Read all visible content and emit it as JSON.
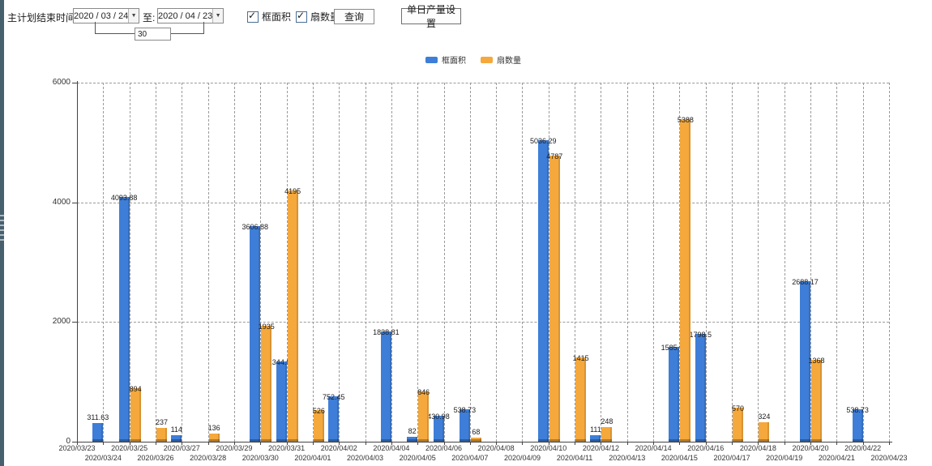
{
  "toolbar": {
    "title_label": "主计划结束时间:",
    "date_from": "2020 / 03 / 24",
    "to_label": "至:",
    "date_to": "2020 / 04 / 23",
    "interval_value": "30",
    "checkbox_area_label": "框面积",
    "checkbox_fan_label": "扇数量",
    "query_button": "查询",
    "daily_output_button": "单日产量设置"
  },
  "colors": {
    "frame_area": "#3e7ed8",
    "fan_count": "#f5a83c",
    "left_strip": "#46606e",
    "grid": "#9a9a9a"
  },
  "chart_data": {
    "type": "bar",
    "title": "",
    "xlabel": "",
    "ylabel": "",
    "ylim": [
      0,
      6000
    ],
    "yticks": [
      0,
      2000,
      4000,
      6000
    ],
    "grid": "dashed",
    "legend_position": "top-center",
    "categories": [
      "2020/03/23",
      "2020/03/24",
      "2020/03/25",
      "2020/03/26",
      "2020/03/27",
      "2020/03/28",
      "2020/03/29",
      "2020/03/30",
      "2020/03/31",
      "2020/04/01",
      "2020/04/02",
      "2020/04/03",
      "2020/04/04",
      "2020/04/05",
      "2020/04/06",
      "2020/04/07",
      "2020/04/08",
      "2020/04/09",
      "2020/04/10",
      "2020/04/11",
      "2020/04/12",
      "2020/04/13",
      "2020/04/14",
      "2020/04/15",
      "2020/04/16",
      "2020/04/17",
      "2020/04/18",
      "2020/04/19",
      "2020/04/20",
      "2020/04/21",
      "2020/04/22",
      "2020/04/23"
    ],
    "series": [
      {
        "name": "框面积",
        "color": "#3e7ed8",
        "values": [
          null,
          311.63,
          4093.88,
          null,
          114,
          null,
          null,
          3606.88,
          1344.95,
          null,
          752.45,
          null,
          1838.81,
          82,
          430.98,
          538.73,
          null,
          null,
          5036.29,
          null,
          111,
          null,
          null,
          1585.96,
          1798.5,
          null,
          null,
          null,
          2688.17,
          null,
          538.73,
          null
        ]
      },
      {
        "name": "扇数量",
        "color": "#f5a83c",
        "values": [
          null,
          null,
          894,
          237,
          null,
          136,
          null,
          1935,
          4195,
          526,
          null,
          null,
          null,
          846,
          null,
          68,
          null,
          null,
          4787,
          1415,
          248,
          null,
          null,
          5388,
          null,
          570,
          324,
          null,
          1368,
          null,
          null,
          null
        ]
      }
    ]
  }
}
